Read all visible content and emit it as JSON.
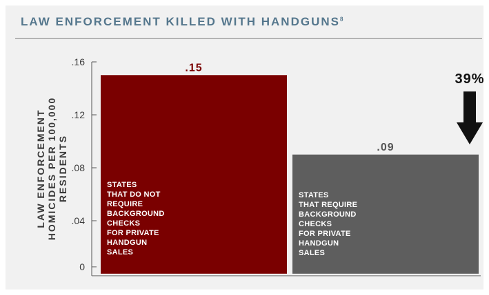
{
  "header": {
    "title": "LAW ENFORCEMENT KILLED WITH HANDGUNS",
    "footnote": "8"
  },
  "chart_data": {
    "type": "bar",
    "title": "LAW ENFORCEMENT KILLED WITH HANDGUNS",
    "ylabel": "LAW ENFORCEMENT HOMICIDES PER 100,000 RESIDENTS",
    "ylim": [
      0,
      0.16
    ],
    "yticks": [
      0,
      0.04,
      0.08,
      0.12,
      0.16
    ],
    "ytick_labels": [
      "0",
      ".04",
      ".08",
      ".12",
      ".16"
    ],
    "categories": [
      "STATES THAT DO NOT REQUIRE BACKGROUND CHECKS FOR PRIVATE HANDGUN SALES",
      "STATES THAT REQUIRE BACKGROUND CHECKS FOR PRIVATE HANDGUN SALES"
    ],
    "category_lines": [
      [
        "STATES",
        "THAT DO NOT",
        "REQUIRE",
        "BACKGROUND",
        "CHECKS",
        "FOR PRIVATE",
        "HANDGUN",
        "SALES"
      ],
      [
        "STATES",
        "THAT REQUIRE",
        "BACKGROUND",
        "CHECKS",
        "FOR PRIVATE",
        "HANDGUN",
        "SALES"
      ]
    ],
    "values": [
      0.15,
      0.09
    ],
    "value_labels": [
      ".15",
      ".09"
    ],
    "colors": [
      "#7a0000",
      "#5e5e5e"
    ],
    "label_colors": [
      "#7a0000",
      "#555555"
    ],
    "annotation": {
      "text": "39%",
      "direction": "down"
    },
    "grid": false
  }
}
